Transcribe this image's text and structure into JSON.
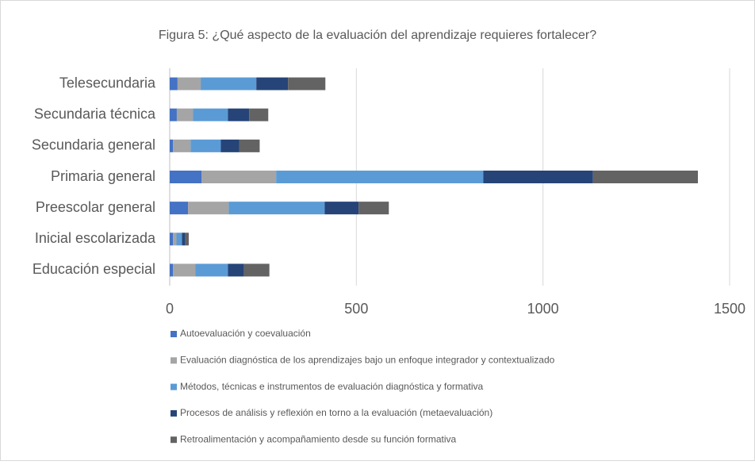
{
  "chart_data": {
    "type": "stacked-barh",
    "title": "Figura 5: ¿Qué aspecto de la evaluación del aprendizaje requieres fortalecer?",
    "categories": [
      "Telesecundaria",
      "Secundaria técnica",
      "Secundaria general",
      "Primaria general",
      "Preescolar general",
      "Inicial escolarizada",
      "Educación especial"
    ],
    "series": [
      {
        "name": "Autoevaluación y coevaluación",
        "color": "#4472c4",
        "values": [
          21,
          19,
          9,
          85,
          49,
          9,
          9
        ]
      },
      {
        "name": "Evaluación diagnóstica de los aprendizajes bajo un enfoque integrador y contextualizado",
        "color": "#a5a5a5",
        "values": [
          62,
          43,
          47,
          200,
          109,
          9,
          60
        ]
      },
      {
        "name": "Métodos, técnicas e instrumentos de evaluación diagnóstica y formativa",
        "color": "#5b9bd5",
        "values": [
          149,
          94,
          81,
          555,
          257,
          15,
          87
        ]
      },
      {
        "name": "Procesos de análisis y reflexión en torno a la evaluación (metaevaluación)",
        "color": "#264478",
        "values": [
          85,
          57,
          49,
          294,
          91,
          9,
          43
        ]
      },
      {
        "name": "Retroalimentación y acompañamiento desde su función formativa",
        "color": "#636363",
        "values": [
          100,
          51,
          55,
          281,
          81,
          9,
          68
        ]
      }
    ],
    "xlim": [
      0,
      1500
    ],
    "xticks": [
      0,
      500,
      1000,
      1500
    ],
    "grid": true,
    "legend": "bottom"
  }
}
